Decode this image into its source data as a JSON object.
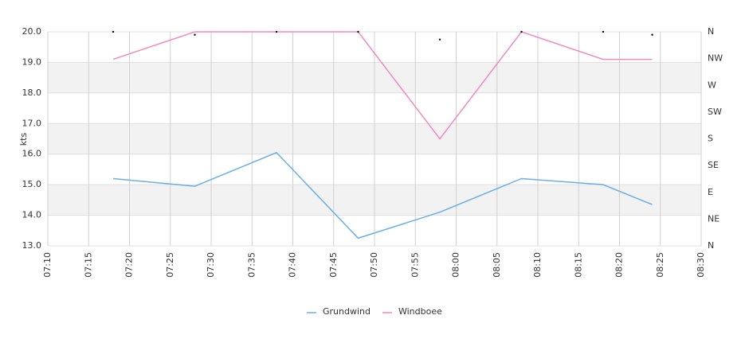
{
  "chart_data": {
    "type": "line",
    "y_label": "kts",
    "x": [
      "07:18",
      "07:28",
      "07:38",
      "07:48",
      "07:58",
      "08:08",
      "08:18",
      "08:24"
    ],
    "series": [
      {
        "name": "Grundwind",
        "color": "#6aaee8",
        "values": [
          15.2,
          14.95,
          16.05,
          13.25,
          14.1,
          15.2,
          15.0,
          14.35
        ]
      },
      {
        "name": "Windboee",
        "color": "#f08bbf",
        "values": [
          19.1,
          20.0,
          20.0,
          20.0,
          16.5,
          20.0,
          19.1,
          19.1
        ]
      },
      {
        "color": "#000000",
        "axis": "y2",
        "values": [
          360,
          355,
          360,
          360,
          347,
          360,
          360,
          355
        ]
      }
    ],
    "xlim": [
      "07:10",
      "08:30"
    ],
    "xticks": [
      "07:10",
      "07:15",
      "07:20",
      "07:25",
      "07:30",
      "07:35",
      "07:40",
      "07:45",
      "07:50",
      "07:55",
      "08:00",
      "08:05",
      "08:10",
      "08:15",
      "08:20",
      "08:25",
      "08:30"
    ],
    "ylim": [
      13,
      20
    ],
    "yticks": [
      {
        "value": 13,
        "label": "13.0"
      },
      {
        "value": 14,
        "label": "14.0"
      },
      {
        "value": 15,
        "label": "15.0"
      },
      {
        "value": 16,
        "label": "16.0"
      },
      {
        "value": 17,
        "label": "17.0"
      },
      {
        "value": 18,
        "label": "18.0"
      },
      {
        "value": 19,
        "label": "19.0"
      },
      {
        "value": 20,
        "label": "20.0"
      }
    ],
    "y2lim": [
      0,
      360
    ],
    "y2ticks": [
      {
        "value": 0,
        "label": "N"
      },
      {
        "value": 45,
        "label": "NE"
      },
      {
        "value": 90,
        "label": "E"
      },
      {
        "value": 135,
        "label": "SE"
      },
      {
        "value": 180,
        "label": "S"
      },
      {
        "value": 225,
        "label": "SW"
      },
      {
        "value": 270,
        "label": "W"
      },
      {
        "value": 315,
        "label": "NW"
      },
      {
        "value": 360,
        "label": "N"
      }
    ],
    "grid": true,
    "legend": "bottom"
  }
}
